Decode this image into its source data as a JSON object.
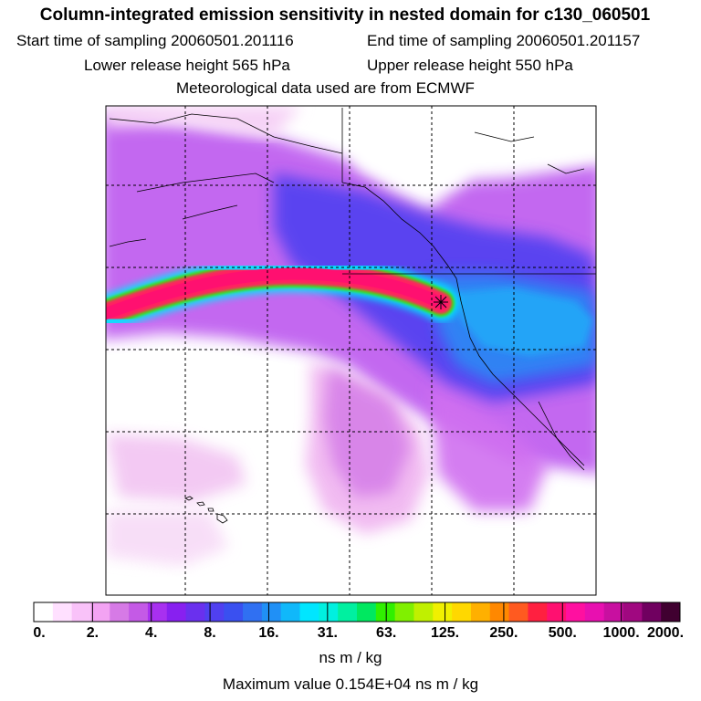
{
  "header": {
    "title": "Column-integrated emission sensitivity in nested domain for c130_060501",
    "start_label": "Start time of sampling 20060501.201116",
    "end_label": "End time of sampling 20060501.201157",
    "lower_label": "Lower release height  565 hPa",
    "upper_label": "Upper release height  550 hPa",
    "met_label": "Meteorological data used are from ECMWF"
  },
  "colorbar": {
    "units": "ns m / kg",
    "tick_labels": [
      "0.",
      "2.",
      "4.",
      "8.",
      "16.",
      "31.",
      "63.",
      "125.",
      "250.",
      "500.",
      "1000.",
      "2000."
    ],
    "colors": [
      "#ffffff",
      "#ffe0ff",
      "#f9c2f9",
      "#f3a3f3",
      "#d67ae6",
      "#c45ae6",
      "#a830f0",
      "#8820f0",
      "#6a30ee",
      "#5040f0",
      "#3a50f0",
      "#3070f2",
      "#2090f6",
      "#10b8fa",
      "#00e6ff",
      "#00f0e0",
      "#00f0a0",
      "#00e860",
      "#30f000",
      "#80f000",
      "#c0f000",
      "#f0f000",
      "#ffd800",
      "#ffb000",
      "#ff8800",
      "#ff5a20",
      "#ff2040",
      "#ff1070",
      "#ff10a0",
      "#e810b0",
      "#c810a0",
      "#a00880",
      "#700060",
      "#400030"
    ]
  },
  "footer": {
    "max_value_label": "Maximum value  0.154E+04 ns m / kg"
  },
  "map": {
    "receptor": "star-marker",
    "region": "North Pacific / western North America"
  }
}
